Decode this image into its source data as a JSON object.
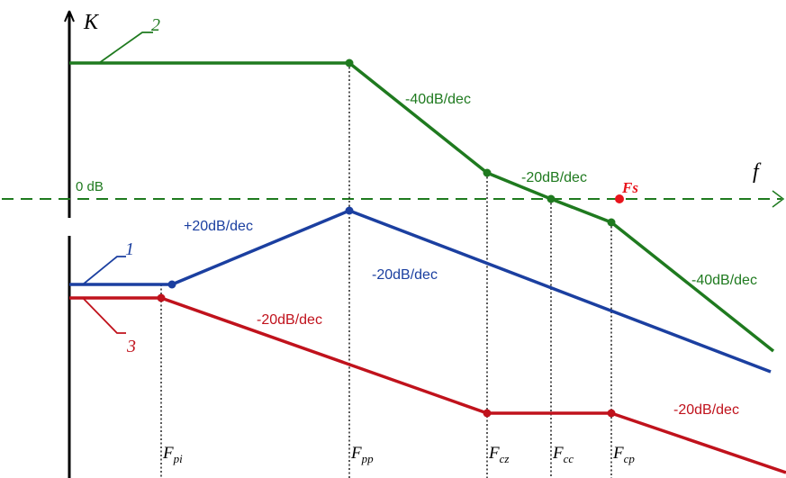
{
  "axes": {
    "y_label": "K",
    "x_label": "f",
    "zero_db_label": "0 dB"
  },
  "frequency_markers": [
    {
      "id": "fpi",
      "base": "F",
      "sub": "pi"
    },
    {
      "id": "fpp",
      "base": "F",
      "sub": "pp"
    },
    {
      "id": "fcz",
      "base": "F",
      "sub": "cz"
    },
    {
      "id": "fcc",
      "base": "F",
      "sub": "cc"
    },
    {
      "id": "fcp",
      "base": "F",
      "sub": "cp"
    }
  ],
  "fs_marker": {
    "label": "Fs",
    "color": "#e8141c"
  },
  "curves": [
    {
      "id": "curve-1",
      "number": "1",
      "color": "#1b3fa0"
    },
    {
      "id": "curve-2",
      "number": "2",
      "color": "#1f7a1f"
    },
    {
      "id": "curve-3",
      "number": "3",
      "color": "#c0121c"
    }
  ],
  "slope_labels": {
    "green_a": "-40dB/dec",
    "green_b": "-20dB/dec",
    "green_c": "-40dB/dec",
    "blue_a": "+20dB/dec",
    "blue_b": "-20dB/dec",
    "red_a": "-20dB/dec",
    "red_b": "-20dB/dec"
  },
  "colors": {
    "green": "#1f7a1f",
    "blue": "#1b3fa0",
    "red": "#c0121c",
    "axis": "#000000"
  }
}
